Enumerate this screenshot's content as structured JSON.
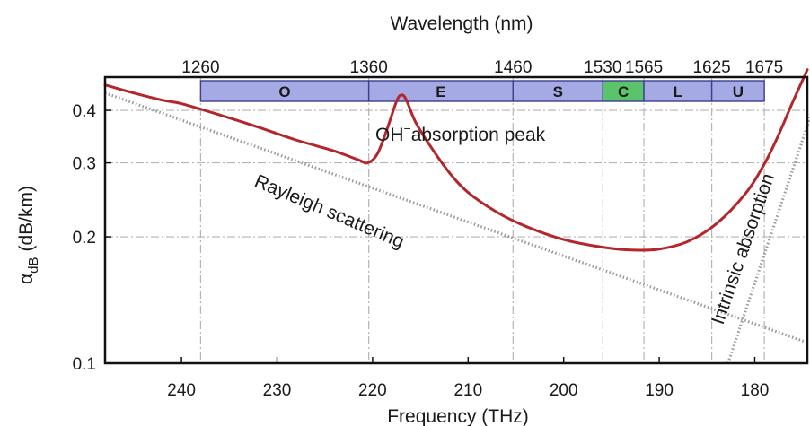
{
  "chart_data": {
    "type": "line",
    "title": "",
    "xlabel": "Frequency (THz)",
    "x2label": "Wavelength (nm)",
    "ylabel_main": "α",
    "ylabel_sub": "dB",
    "ylabel_unit": "(dB/km)",
    "x_ticks": [
      240,
      230,
      220,
      210,
      200,
      190,
      180
    ],
    "x_tick_labels": [
      "240",
      "230",
      "220",
      "210",
      "200",
      "190",
      "180"
    ],
    "x_range": [
      248,
      174.5
    ],
    "y_scale": "log",
    "y_ticks": [
      0.1,
      0.2,
      0.3,
      0.4
    ],
    "y_tick_labels": [
      "0.1",
      "0.2",
      "0.3",
      "0.4"
    ],
    "y_range": [
      0.1,
      0.48
    ],
    "grid": true,
    "wavelength_ticks": [
      {
        "label": "1260",
        "thz": 238.0
      },
      {
        "label": "1360",
        "thz": 220.4
      },
      {
        "label": "1460",
        "thz": 205.3
      },
      {
        "label": "1530",
        "thz": 195.9
      },
      {
        "label": "1565",
        "thz": 191.6
      },
      {
        "label": "1625",
        "thz": 184.5
      },
      {
        "label": "1675",
        "thz": 179.0
      }
    ],
    "bands": [
      {
        "name": "O",
        "from": 238.0,
        "to": 220.4,
        "color": "#a5a9e4"
      },
      {
        "name": "E",
        "from": 220.4,
        "to": 205.3,
        "color": "#a5a9e4"
      },
      {
        "name": "S",
        "from": 205.3,
        "to": 195.9,
        "color": "#a5a9e4"
      },
      {
        "name": "C",
        "from": 195.9,
        "to": 191.6,
        "color": "#5ac46a"
      },
      {
        "name": "L",
        "from": 191.6,
        "to": 184.5,
        "color": "#a5a9e4"
      },
      {
        "name": "U",
        "from": 184.5,
        "to": 179.0,
        "color": "#a5a9e4"
      }
    ],
    "series": [
      {
        "name": "",
        "color": "#b3262b",
        "style": "solid",
        "x": [
          248,
          245,
          242,
          240,
          236,
          232,
          228,
          224,
          221.5,
          220.5,
          219.5,
          218.5,
          217.5,
          217,
          216.5,
          215.5,
          214,
          212,
          210,
          207,
          204,
          200,
          196,
          193,
          190,
          187,
          184,
          181,
          179,
          177.5,
          176,
          174.5
        ],
        "y": [
          0.46,
          0.44,
          0.423,
          0.415,
          0.39,
          0.365,
          0.34,
          0.32,
          0.305,
          0.3,
          0.315,
          0.36,
          0.42,
          0.435,
          0.425,
          0.375,
          0.33,
          0.285,
          0.255,
          0.229,
          0.212,
          0.197,
          0.189,
          0.186,
          0.187,
          0.195,
          0.215,
          0.253,
          0.298,
          0.35,
          0.42,
          0.5
        ]
      },
      {
        "name": "Rayleigh scattering",
        "color": "#9a9a9a",
        "style": "dotted",
        "x": [
          248,
          174.5
        ],
        "y": [
          0.44,
          0.112
        ]
      },
      {
        "name": "Intrinsic absorption",
        "color": "#9a9a9a",
        "style": "dotted",
        "x": [
          182.8,
          173.5
        ],
        "y": [
          0.1,
          0.43
        ]
      }
    ],
    "annotations": [
      {
        "text": "OH",
        "sup": "−",
        "rest": "absorption peak"
      },
      {
        "text": "Rayleigh scattering"
      },
      {
        "text": "Intrinsic absorption"
      }
    ]
  }
}
